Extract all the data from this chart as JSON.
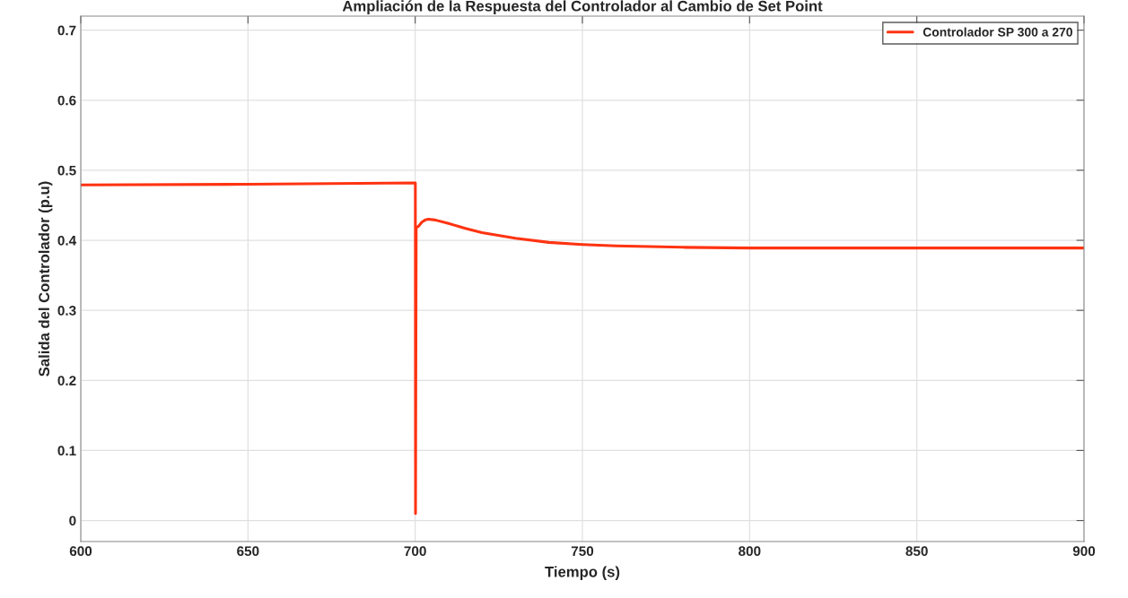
{
  "chart_data": {
    "type": "line",
    "title": "Ampliación de la Respuesta del Controlador al Cambio de Set Point",
    "xlabel": "Tiempo (s)",
    "ylabel": "Salida del Controlador (p.u)",
    "series": [
      {
        "name": "Controlador SP 300 a 270",
        "color": "#ff3311",
        "x": [
          600,
          650,
          700,
          700.05,
          700.1,
          700.3,
          701,
          702,
          703,
          704,
          706,
          710,
          715,
          720,
          730,
          740,
          750,
          760,
          770,
          780,
          800,
          820,
          850,
          880,
          900
        ],
        "values": [
          0.479,
          0.48,
          0.482,
          0.482,
          0.01,
          0.418,
          0.42,
          0.426,
          0.429,
          0.43,
          0.429,
          0.424,
          0.417,
          0.411,
          0.403,
          0.397,
          0.394,
          0.392,
          0.391,
          0.39,
          0.389,
          0.389,
          0.389,
          0.389,
          0.389
        ]
      }
    ],
    "xlim": [
      600,
      900
    ],
    "xticks": [
      600,
      650,
      700,
      750,
      800,
      850,
      900
    ],
    "ylim": [
      -0.03,
      0.72
    ],
    "yticks": [
      0,
      0.1,
      0.2,
      0.3,
      0.4,
      0.5,
      0.6,
      0.7
    ],
    "grid": true,
    "legend": "top right",
    "marker": "none",
    "line_style": "solid"
  }
}
